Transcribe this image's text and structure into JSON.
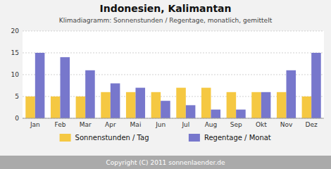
{
  "chart_data": {
    "type": "bar",
    "title": "Indonesien, Kalimantan",
    "subtitle": "Klimadiagramm: Sonnenstunden / Regentage, monatlich, gemittelt",
    "categories": [
      "Jan",
      "Feb",
      "Mar",
      "Apr",
      "Mai",
      "Jun",
      "Jul",
      "Aug",
      "Sep",
      "Okt",
      "Nov",
      "Dez"
    ],
    "series": [
      {
        "name": "Sonnenstunden / Tag",
        "color": "#F5C842",
        "values": [
          5,
          5,
          5,
          6,
          6,
          6,
          7,
          7,
          6,
          6,
          6,
          5
        ]
      },
      {
        "name": "Regentage / Monat",
        "color": "#7777CC",
        "values": [
          15,
          14,
          11,
          8,
          7,
          4,
          3,
          2,
          2,
          6,
          11,
          15
        ]
      }
    ],
    "ylim": [
      0,
      20
    ],
    "yticks": [
      0,
      5,
      10,
      15,
      20
    ],
    "grid": true,
    "legend": "bottom",
    "annotations": [
      "Copyright (C) 2011 sonnenlaender.de"
    ]
  }
}
